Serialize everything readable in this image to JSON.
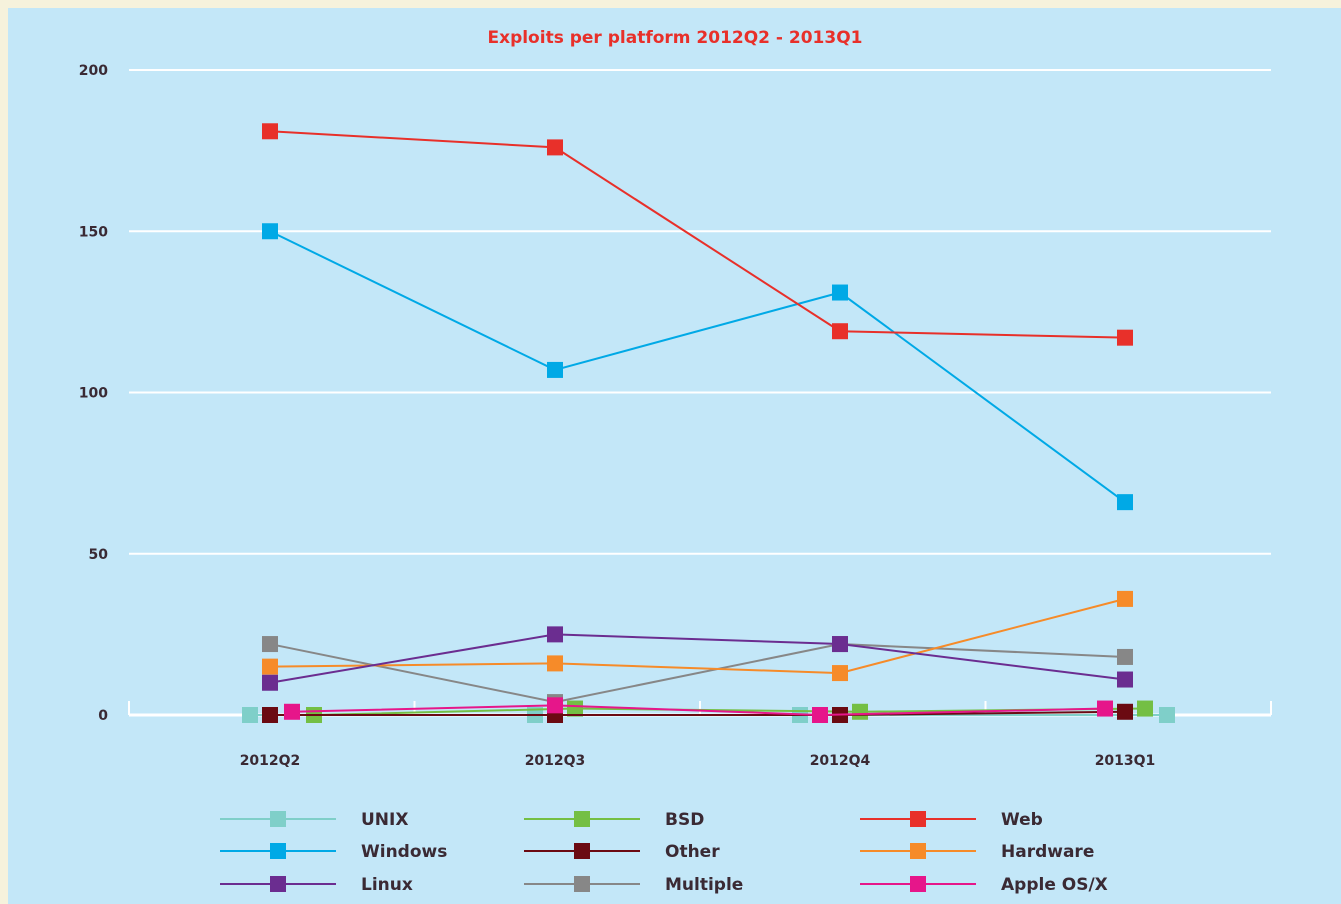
{
  "chart_data": {
    "type": "line",
    "title": "Exploits per platform 2012Q2 - 2013Q1",
    "title_color": "#e8302a",
    "categories": [
      "2012Q2",
      "2012Q3",
      "2012Q4",
      "2013Q1"
    ],
    "yticks": [
      0,
      50,
      100,
      150,
      200
    ],
    "ylim": [
      0,
      200
    ],
    "grid": true,
    "legend_position": "bottom",
    "series": [
      {
        "name": "UNIX",
        "color": "#7fcfc9",
        "values": [
          0,
          0,
          0,
          0
        ]
      },
      {
        "name": "BSD",
        "color": "#74bf44",
        "values": [
          0,
          2,
          1,
          2
        ]
      },
      {
        "name": "Web",
        "color": "#e8302a",
        "values": [
          181,
          176,
          119,
          117
        ]
      },
      {
        "name": "Windows",
        "color": "#00a9e6",
        "values": [
          150,
          107,
          131,
          66
        ]
      },
      {
        "name": "Other",
        "color": "#6b0a12",
        "values": [
          0,
          0,
          0,
          1
        ]
      },
      {
        "name": "Hardware",
        "color": "#f68b29",
        "values": [
          15,
          16,
          13,
          36
        ]
      },
      {
        "name": "Linux",
        "color": "#6b2d90",
        "values": [
          10,
          25,
          22,
          11
        ]
      },
      {
        "name": "Multiple",
        "color": "#878787",
        "values": [
          22,
          4,
          22,
          18
        ]
      },
      {
        "name": "Apple OS/X",
        "color": "#e6168a",
        "values": [
          1,
          3,
          0,
          2
        ]
      }
    ]
  }
}
